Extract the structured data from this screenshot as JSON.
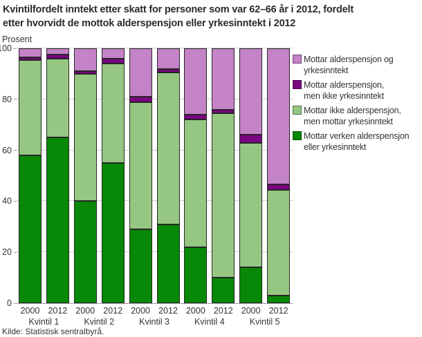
{
  "source": "Kilde: Statistisk sentralbyrå.",
  "chart_data": {
    "type": "bar",
    "stacked": true,
    "title": "Kvintilfordelt inntekt etter skatt for personer som var 62–66 år i 2012, fordelt etter hvorvidt de mottok alderspensjon eller yrkesinntekt i 2012",
    "title_lines": [
      "Kvintilfordelt inntekt etter skatt for personer som var 62–66 år i 2012, fordelt",
      "etter hvorvidt de mottok alderspensjon eller yrkesinntekt i 2012"
    ],
    "ylabel": "Prosent",
    "ylim": [
      0,
      100
    ],
    "yticks": [
      0,
      20,
      40,
      60,
      80,
      100
    ],
    "grid": "horizontal",
    "legend_position": "right",
    "groups": [
      "Kvintil 1",
      "Kvintil 2",
      "Kvintil 3",
      "Kvintil 4",
      "Kvintil 5"
    ],
    "years": [
      "2000",
      "2012"
    ],
    "series": [
      {
        "key": "verken-alderspensjon-eller-yrkesinntekt",
        "name": "Mottar verken alderspensjon eller yrkesinntekt",
        "legend_lines": [
          "Mottar verken alderspensjon",
          "eller yrkesinntekt"
        ],
        "color": "#078806",
        "values": [
          58,
          65,
          40,
          55,
          29,
          31,
          22,
          10,
          14,
          3
        ]
      },
      {
        "key": "ikke-alderspensjon-men-yrkesinntekt",
        "name": "Mottar ikke alderspensjon, men mottar yrkesinntekt",
        "legend_lines": [
          "Mottar ikke alderspensjon,",
          "men mottar yrkesinntekt"
        ],
        "color": "#95c783",
        "values": [
          37.5,
          31,
          50,
          39,
          50,
          59.5,
          50,
          64.5,
          49,
          41.5
        ]
      },
      {
        "key": "alderspensjon-men-ikke-yrkesinntekt",
        "name": "Mottar alderspensjon, men ikke yrkesinntekt",
        "legend_lines": [
          "Mottar alderspensjon,",
          "men ikke yrkesinntekt"
        ],
        "color": "#7a0580",
        "values": [
          1,
          1.5,
          1,
          2,
          2,
          1.5,
          2,
          1.5,
          3,
          2
        ]
      },
      {
        "key": "alderspensjon-og-yrkesinntekt",
        "name": "Mottar alderspensjon og yrkesinntekt",
        "legend_lines": [
          "Mottar alderspensjon og",
          "yrkesinntekt"
        ],
        "color": "#c482c7",
        "values": [
          3.5,
          2.5,
          9,
          4,
          19,
          8,
          26,
          24,
          34,
          53.5
        ]
      }
    ]
  }
}
